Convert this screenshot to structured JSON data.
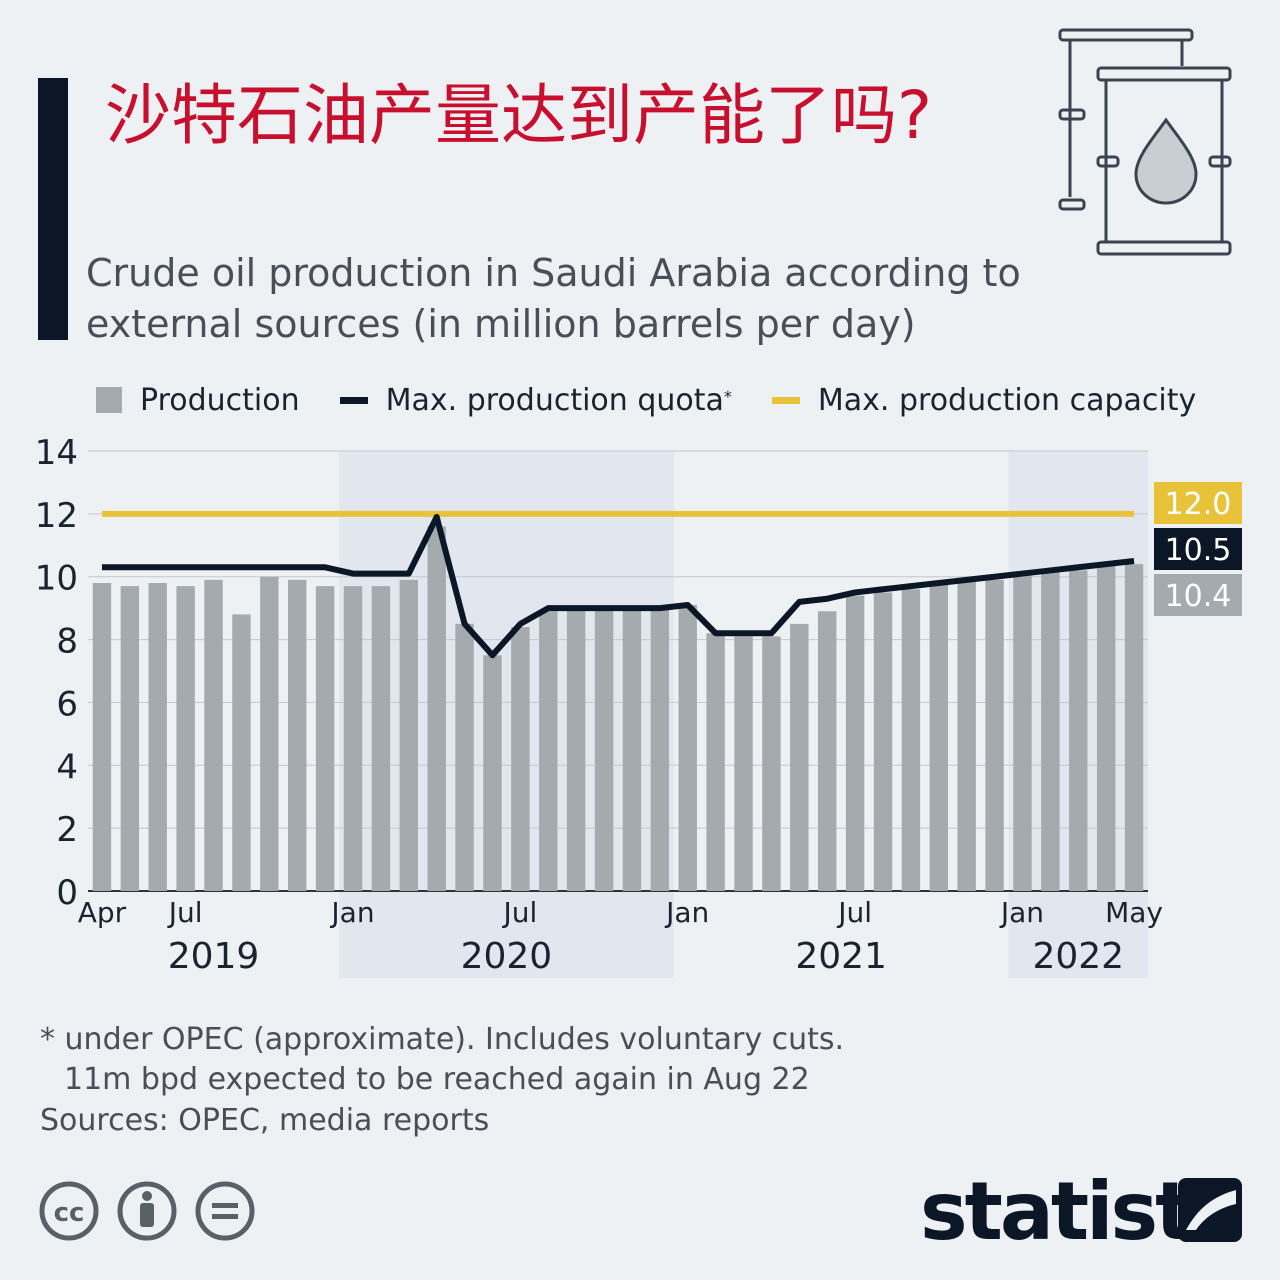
{
  "title": "沙特石油产量达到产能了吗?",
  "subtitle": "Crude oil production in Saudi Arabia according to external sources (in million barrels per day)",
  "legend": {
    "production": "Production",
    "quota": "Max. production quota",
    "quota_mark": "*",
    "capacity": "Max. production capacity"
  },
  "footnote": {
    "line1": "* under OPEC (approximate). Includes voluntary cuts.",
    "line2": "11m bpd expected to be reached again in Aug 22"
  },
  "sources": "Sources: OPEC, media reports",
  "logo": "statista",
  "icons": [
    "oil-barrel-icon",
    "creative-commons-icon",
    "attribution-icon",
    "no-derivatives-icon",
    "statista-logo-icon"
  ],
  "colors": {
    "title": "#c8102e",
    "production": "#a4aaae",
    "quota": "#0b1627",
    "capacity": "#e8c33a",
    "shade": "#e2e7ef"
  },
  "chart_data": {
    "type": "bar",
    "ylim": [
      0,
      14
    ],
    "yticks": [
      0,
      2,
      4,
      6,
      8,
      10,
      12,
      14
    ],
    "x_tick_labels": [
      {
        "index": 0,
        "label": "Apr"
      },
      {
        "index": 3,
        "label": "Jul"
      },
      {
        "index": 9,
        "label": "Jan"
      },
      {
        "index": 15,
        "label": "Jul"
      },
      {
        "index": 21,
        "label": "Jan"
      },
      {
        "index": 27,
        "label": "Jul"
      },
      {
        "index": 33,
        "label": "Jan"
      },
      {
        "index": 37,
        "label": "May"
      }
    ],
    "year_labels": [
      {
        "label": "2019",
        "start": 0,
        "end": 8
      },
      {
        "label": "2020",
        "start": 9,
        "end": 20
      },
      {
        "label": "2021",
        "start": 21,
        "end": 32
      },
      {
        "label": "2022",
        "start": 33,
        "end": 37
      }
    ],
    "categories": [
      "Apr 2019",
      "May 2019",
      "Jun 2019",
      "Jul 2019",
      "Aug 2019",
      "Sep 2019",
      "Oct 2019",
      "Nov 2019",
      "Dec 2019",
      "Jan 2020",
      "Feb 2020",
      "Mar 2020",
      "Apr 2020",
      "May 2020",
      "Jun 2020",
      "Jul 2020",
      "Aug 2020",
      "Sep 2020",
      "Oct 2020",
      "Nov 2020",
      "Dec 2020",
      "Jan 2021",
      "Feb 2021",
      "Mar 2021",
      "Apr 2021",
      "May 2021",
      "Jun 2021",
      "Jul 2021",
      "Aug 2021",
      "Sep 2021",
      "Oct 2021",
      "Nov 2021",
      "Dec 2021",
      "Jan 2022",
      "Feb 2022",
      "Mar 2022",
      "Apr 2022",
      "May 2022"
    ],
    "series": [
      {
        "name": "Production",
        "kind": "bar",
        "values": [
          9.8,
          9.7,
          9.8,
          9.7,
          9.9,
          8.8,
          10.0,
          9.9,
          9.7,
          9.7,
          9.7,
          9.9,
          11.6,
          8.5,
          7.5,
          8.4,
          8.9,
          9.0,
          9.0,
          9.0,
          9.0,
          9.1,
          8.2,
          8.1,
          8.1,
          8.5,
          8.9,
          9.4,
          9.5,
          9.6,
          9.8,
          9.9,
          9.9,
          10.1,
          10.2,
          10.2,
          10.4,
          10.4
        ],
        "end_label": "10.4"
      },
      {
        "name": "Max. production quota",
        "kind": "line",
        "values": [
          10.3,
          10.3,
          10.3,
          10.3,
          10.3,
          10.3,
          10.3,
          10.3,
          10.3,
          10.1,
          10.1,
          10.1,
          11.9,
          8.5,
          7.5,
          8.5,
          9.0,
          9.0,
          9.0,
          9.0,
          9.0,
          9.1,
          8.2,
          8.2,
          8.2,
          9.2,
          9.3,
          9.5,
          9.6,
          9.7,
          9.8,
          9.9,
          10.0,
          10.1,
          10.2,
          10.3,
          10.4,
          10.5
        ],
        "end_label": "10.5"
      },
      {
        "name": "Max. production capacity",
        "kind": "line",
        "values": [
          12.0,
          12.0,
          12.0,
          12.0,
          12.0,
          12.0,
          12.0,
          12.0,
          12.0,
          12.0,
          12.0,
          12.0,
          12.0,
          12.0,
          12.0,
          12.0,
          12.0,
          12.0,
          12.0,
          12.0,
          12.0,
          12.0,
          12.0,
          12.0,
          12.0,
          12.0,
          12.0,
          12.0,
          12.0,
          12.0,
          12.0,
          12.0,
          12.0,
          12.0,
          12.0,
          12.0,
          12.0,
          12.0
        ],
        "end_label": "12.0"
      }
    ],
    "shaded_years": [
      "2020",
      "2022"
    ],
    "grid": true,
    "legend_position": "top-left"
  }
}
